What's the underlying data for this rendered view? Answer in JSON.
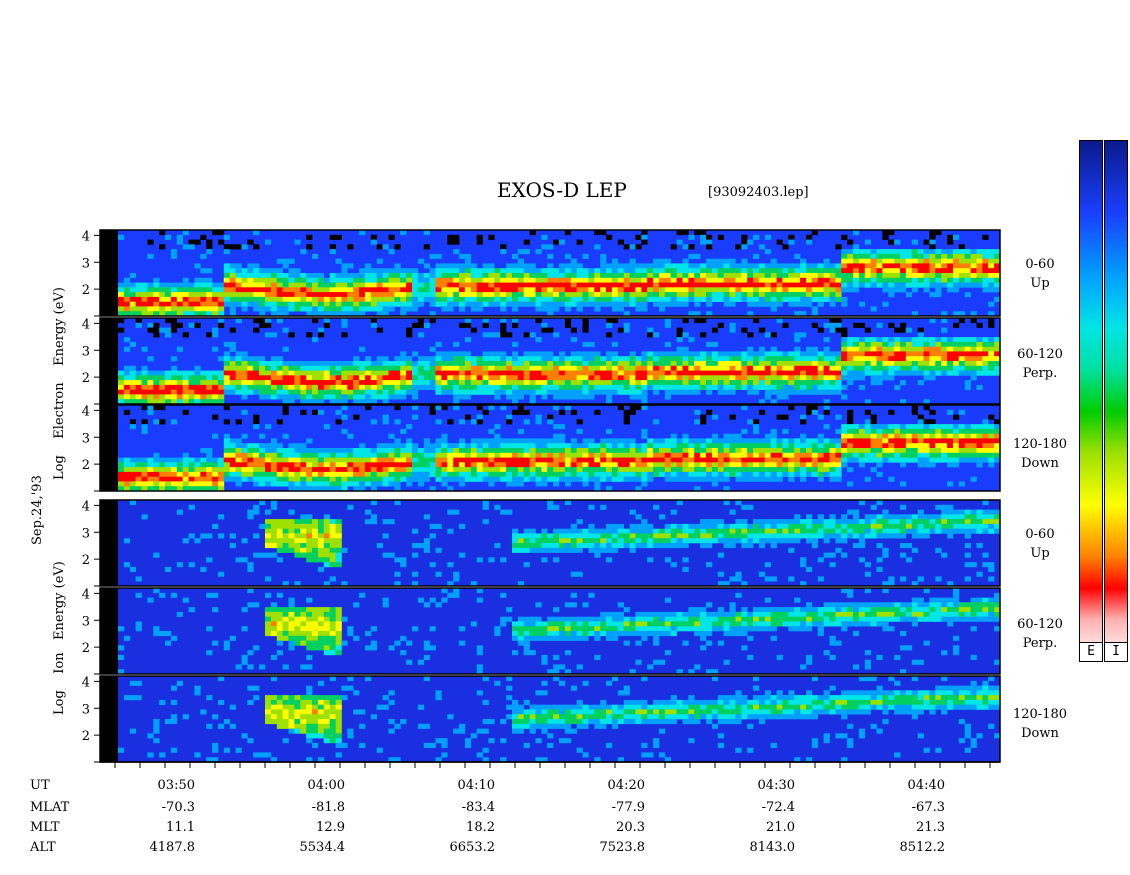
{
  "header": {
    "title": "EXOS-D LEP",
    "filename": "[93092403.lep]"
  },
  "date_label": "Sep.24,'93",
  "colorbar": {
    "labels": [
      "E",
      "I"
    ],
    "colors": [
      "#0a1a8c",
      "#1a40ff",
      "#1aa0ff",
      "#00e5e5",
      "#00e080",
      "#00d000",
      "#aee000",
      "#ffff00",
      "#ffa000",
      "#ff0000",
      "#ffffff"
    ]
  },
  "axis_titles": {
    "electron": [
      "Log",
      "Electron",
      "Energy",
      "(eV)"
    ],
    "ion": [
      "Log",
      "Ion",
      "Energy",
      "(eV)"
    ]
  },
  "chart_data": {
    "type": "heatmap",
    "title": "EXOS-D LEP",
    "xlabel": "UT",
    "ylabel": "Log Energy (eV)",
    "x_ticks": [
      "03:50",
      "04:00",
      "04:10",
      "04:20",
      "04:30",
      "04:40"
    ],
    "y_ticks": [
      "2",
      "3",
      "4"
    ],
    "ylim": [
      1,
      4.2
    ],
    "panels": [
      {
        "species": "Electron",
        "pitch": "0-60",
        "dir": "Up"
      },
      {
        "species": "Electron",
        "pitch": "60-120",
        "dir": "Perp."
      },
      {
        "species": "Electron",
        "pitch": "120-180",
        "dir": "Down"
      },
      {
        "species": "Ion",
        "pitch": "0-60",
        "dir": "Up"
      },
      {
        "species": "Ion",
        "pitch": "60-120",
        "dir": "Perp."
      },
      {
        "species": "Ion",
        "pitch": "120-180",
        "dir": "Down"
      }
    ]
  },
  "ephemeris": {
    "rows": [
      {
        "label": "UT",
        "values": [
          "03:50",
          "04:00",
          "04:10",
          "04:20",
          "04:30",
          "04:40"
        ]
      },
      {
        "label": "MLAT",
        "values": [
          "-70.3",
          "-81.8",
          "-83.4",
          "-77.9",
          "-72.4",
          "-67.3"
        ]
      },
      {
        "label": "MLT",
        "values": [
          "11.1",
          "12.9",
          "18.2",
          "20.3",
          "21.0",
          "21.3"
        ]
      },
      {
        "label": "ALT",
        "values": [
          "4187.8",
          "5534.4",
          "6653.2",
          "7523.8",
          "8143.0",
          "8512.2"
        ]
      }
    ]
  }
}
